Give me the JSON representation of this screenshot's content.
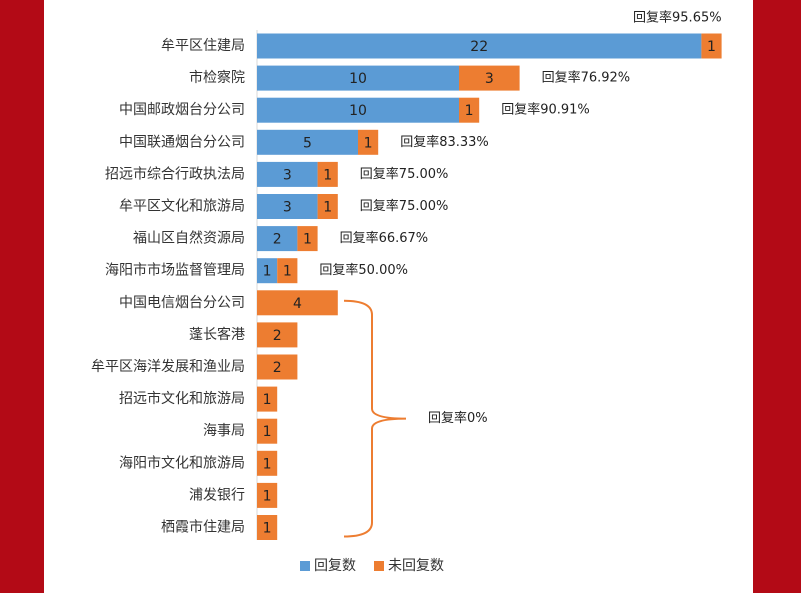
{
  "chart_data": {
    "type": "bar",
    "orientation": "horizontal",
    "stacked": true,
    "categories": [
      "牟平区住建局",
      "市检察院",
      "中国邮政烟台分公司",
      "中国联通烟台分公司",
      "招远市综合行政执法局",
      "牟平区文化和旅游局",
      "福山区自然资源局",
      "海阳市市场监督管理局",
      "中国电信烟台分公司",
      "蓬长客港",
      "牟平区海洋发展和渔业局",
      "招远市文化和旅游局",
      "海事局",
      "海阳市文化和旅游局",
      "浦发银行",
      "栖霞市住建局"
    ],
    "series": [
      {
        "name": "回复数",
        "color": "#5b9bd5",
        "values": [
          22,
          10,
          10,
          5,
          3,
          3,
          2,
          1,
          0,
          0,
          0,
          0,
          0,
          0,
          0,
          0
        ]
      },
      {
        "name": "未回复数",
        "color": "#ed7d31",
        "values": [
          1,
          3,
          1,
          1,
          1,
          1,
          1,
          1,
          4,
          2,
          2,
          1,
          1,
          1,
          1,
          1
        ]
      }
    ],
    "rate_labels": [
      "回复率95.65%",
      "回复率76.92%",
      "回复率90.91%",
      "回复率83.33%",
      "回复率75.00%",
      "回复率75.00%",
      "回复率66.67%",
      "回复率50.00%"
    ],
    "group_label": "回复率0%",
    "group_range": [
      8,
      15
    ],
    "legend_position": "bottom",
    "grid": false
  }
}
